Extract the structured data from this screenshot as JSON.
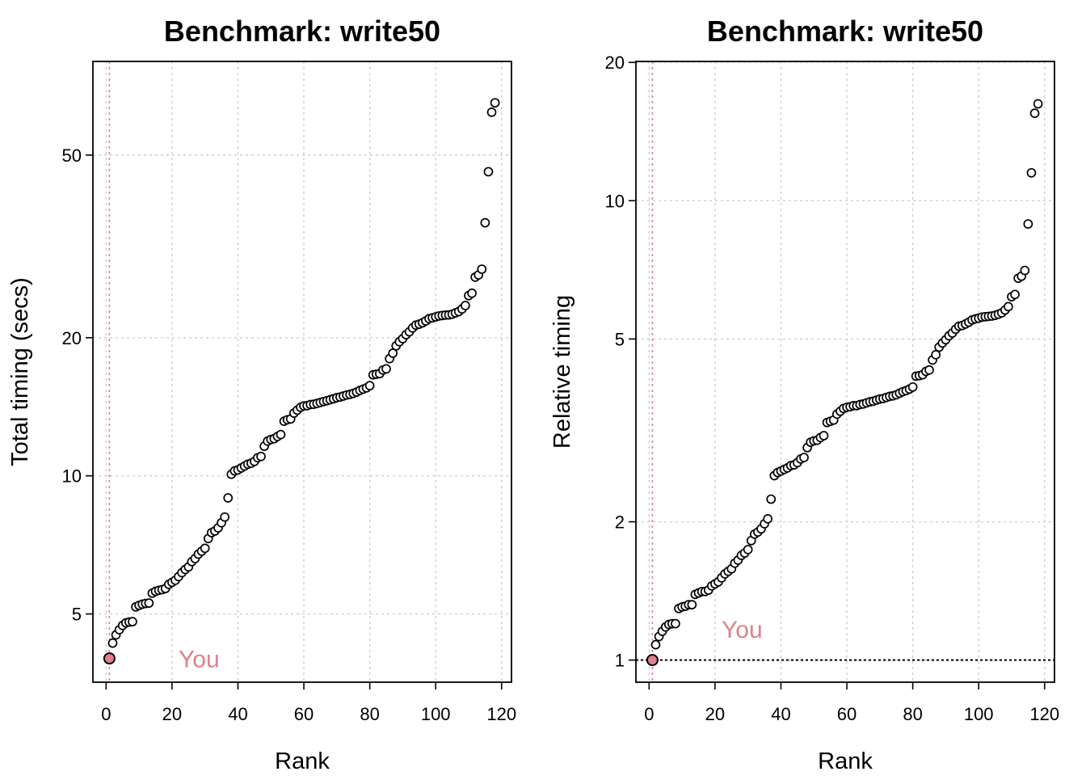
{
  "chart_data": [
    {
      "type": "scatter",
      "title": "Benchmark: write50",
      "xlabel": "Rank",
      "ylabel": "Total timing (secs)",
      "yscale": "log",
      "xlim": [
        -4,
        123
      ],
      "ylim": [
        3.55,
        80
      ],
      "xticks": [
        0,
        20,
        40,
        60,
        80,
        100,
        120
      ],
      "yticks": [
        5,
        10,
        20,
        50
      ],
      "grid": "dotted",
      "highlight": {
        "label": "You",
        "rank": 1,
        "value": 4.0,
        "color": "#e0808a",
        "label_x": 22,
        "label_y": 4.0
      },
      "reference_line": null,
      "points": {
        "x": [
          1,
          2,
          3,
          4,
          5,
          6,
          7,
          8,
          9,
          10,
          11,
          12,
          13,
          14,
          15,
          16,
          17,
          18,
          19,
          20,
          21,
          22,
          23,
          24,
          25,
          26,
          27,
          28,
          29,
          30,
          31,
          32,
          33,
          34,
          35,
          36,
          37,
          38,
          39,
          40,
          41,
          42,
          43,
          44,
          45,
          46,
          47,
          48,
          49,
          50,
          51,
          52,
          53,
          54,
          55,
          56,
          57,
          58,
          59,
          60,
          61,
          62,
          63,
          64,
          65,
          66,
          67,
          68,
          69,
          70,
          71,
          72,
          73,
          74,
          75,
          76,
          77,
          78,
          79,
          80,
          81,
          82,
          83,
          84,
          85,
          86,
          87,
          88,
          89,
          90,
          91,
          92,
          93,
          94,
          95,
          96,
          97,
          98,
          99,
          100,
          101,
          102,
          103,
          104,
          105,
          106,
          107,
          108,
          109,
          110,
          111,
          112,
          113,
          114,
          115,
          116,
          117,
          118
        ],
        "y": [
          4.0,
          4.32,
          4.5,
          4.62,
          4.72,
          4.78,
          4.8,
          4.81,
          5.18,
          5.22,
          5.25,
          5.27,
          5.28,
          5.55,
          5.6,
          5.63,
          5.65,
          5.68,
          5.8,
          5.86,
          5.92,
          6.03,
          6.15,
          6.25,
          6.33,
          6.5,
          6.6,
          6.75,
          6.85,
          6.95,
          7.3,
          7.52,
          7.58,
          7.7,
          7.9,
          8.13,
          8.95,
          10.08,
          10.25,
          10.3,
          10.4,
          10.5,
          10.6,
          10.65,
          10.75,
          10.95,
          11.02,
          11.6,
          11.9,
          12.0,
          12.05,
          12.18,
          12.3,
          13.15,
          13.25,
          13.3,
          13.7,
          13.9,
          14.1,
          14.2,
          14.22,
          14.3,
          14.32,
          14.38,
          14.45,
          14.52,
          14.58,
          14.65,
          14.72,
          14.8,
          14.85,
          14.92,
          15.0,
          15.05,
          15.12,
          15.22,
          15.35,
          15.45,
          15.55,
          15.72,
          16.6,
          16.65,
          16.7,
          17.0,
          17.1,
          18.0,
          18.5,
          19.2,
          19.6,
          19.9,
          20.3,
          20.6,
          21.0,
          21.3,
          21.4,
          21.55,
          21.75,
          22.0,
          22.1,
          22.2,
          22.3,
          22.35,
          22.4,
          22.42,
          22.5,
          22.65,
          22.8,
          23.1,
          23.5,
          24.7,
          25.0,
          27.1,
          27.4,
          28.2,
          35.6,
          46.0,
          62.0,
          65.0
        ]
      }
    },
    {
      "type": "scatter",
      "title": "Benchmark: write50",
      "xlabel": "Rank",
      "ylabel": "Relative timing",
      "yscale": "log",
      "xlim": [
        -4,
        123
      ],
      "ylim": [
        0.895,
        20.1
      ],
      "xticks": [
        0,
        20,
        40,
        60,
        80,
        100,
        120
      ],
      "yticks": [
        1,
        2,
        5,
        10,
        20
      ],
      "grid": "dotted",
      "highlight": {
        "label": "You",
        "rank": 1,
        "value": 1.0,
        "color": "#e0808a",
        "label_x": 22,
        "label_y": 1.17
      },
      "reference_line": {
        "y": 1,
        "style": "dotted",
        "color": "#000000"
      },
      "points": {
        "x": [
          1,
          2,
          3,
          4,
          5,
          6,
          7,
          8,
          9,
          10,
          11,
          12,
          13,
          14,
          15,
          16,
          17,
          18,
          19,
          20,
          21,
          22,
          23,
          24,
          25,
          26,
          27,
          28,
          29,
          30,
          31,
          32,
          33,
          34,
          35,
          36,
          37,
          38,
          39,
          40,
          41,
          42,
          43,
          44,
          45,
          46,
          47,
          48,
          49,
          50,
          51,
          52,
          53,
          54,
          55,
          56,
          57,
          58,
          59,
          60,
          61,
          62,
          63,
          64,
          65,
          66,
          67,
          68,
          69,
          70,
          71,
          72,
          73,
          74,
          75,
          76,
          77,
          78,
          79,
          80,
          81,
          82,
          83,
          84,
          85,
          86,
          87,
          88,
          89,
          90,
          91,
          92,
          93,
          94,
          95,
          96,
          97,
          98,
          99,
          100,
          101,
          102,
          103,
          104,
          105,
          106,
          107,
          108,
          109,
          110,
          111,
          112,
          113,
          114,
          115,
          116,
          117,
          118
        ],
        "y": [
          1.0,
          1.08,
          1.125,
          1.155,
          1.18,
          1.195,
          1.2,
          1.2,
          1.295,
          1.305,
          1.31,
          1.32,
          1.32,
          1.39,
          1.4,
          1.41,
          1.41,
          1.42,
          1.45,
          1.465,
          1.48,
          1.51,
          1.54,
          1.56,
          1.58,
          1.625,
          1.65,
          1.69,
          1.71,
          1.74,
          1.82,
          1.88,
          1.9,
          1.93,
          1.98,
          2.03,
          2.24,
          2.52,
          2.56,
          2.58,
          2.6,
          2.62,
          2.65,
          2.66,
          2.69,
          2.74,
          2.76,
          2.9,
          2.98,
          3.0,
          3.01,
          3.05,
          3.08,
          3.29,
          3.31,
          3.33,
          3.43,
          3.48,
          3.53,
          3.55,
          3.56,
          3.58,
          3.58,
          3.6,
          3.61,
          3.63,
          3.65,
          3.66,
          3.68,
          3.7,
          3.71,
          3.73,
          3.75,
          3.76,
          3.78,
          3.81,
          3.84,
          3.86,
          3.89,
          3.93,
          4.15,
          4.16,
          4.18,
          4.25,
          4.28,
          4.5,
          4.62,
          4.8,
          4.9,
          4.98,
          5.08,
          5.15,
          5.25,
          5.33,
          5.35,
          5.39,
          5.44,
          5.5,
          5.53,
          5.55,
          5.58,
          5.59,
          5.6,
          5.61,
          5.63,
          5.66,
          5.7,
          5.78,
          5.88,
          6.18,
          6.25,
          6.78,
          6.85,
          7.05,
          8.9,
          11.5,
          15.5,
          16.25
        ]
      }
    }
  ]
}
